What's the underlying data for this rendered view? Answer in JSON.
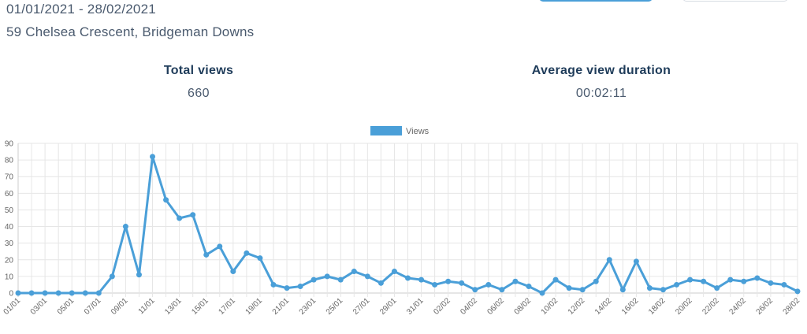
{
  "header": {
    "date_range": "01/01/2021 - 28/02/2021",
    "address": "59 Chelsea Crescent, Bridgeman Downs"
  },
  "stats": {
    "total_views_label": "Total views",
    "total_views_value": "660",
    "avg_duration_label": "Average view duration",
    "avg_duration_value": "00:02:11"
  },
  "colors": {
    "series": "#4a9fd8",
    "grid": "#e6e6e6",
    "axis": "#cccccc"
  },
  "chart_data": {
    "type": "line",
    "legend_position": "top-center",
    "grid": true,
    "ylim": [
      0,
      90
    ],
    "yticks": [
      0,
      10,
      20,
      30,
      40,
      50,
      60,
      70,
      80,
      90
    ],
    "x": [
      "01/01",
      "02/01",
      "03/01",
      "04/01",
      "05/01",
      "06/01",
      "07/01",
      "08/01",
      "09/01",
      "10/01",
      "11/01",
      "12/01",
      "13/01",
      "14/01",
      "15/01",
      "16/01",
      "17/01",
      "18/01",
      "19/01",
      "20/01",
      "21/01",
      "22/01",
      "23/01",
      "24/01",
      "25/01",
      "26/01",
      "27/01",
      "28/01",
      "29/01",
      "30/01",
      "31/01",
      "01/02",
      "02/02",
      "03/02",
      "04/02",
      "05/02",
      "06/02",
      "07/02",
      "08/02",
      "09/02",
      "10/02",
      "11/02",
      "12/02",
      "13/02",
      "14/02",
      "15/02",
      "16/02",
      "17/02",
      "18/02",
      "19/02",
      "20/02",
      "21/02",
      "22/02",
      "23/02",
      "24/02",
      "25/02",
      "26/02",
      "27/02",
      "28/02"
    ],
    "x_tick_labels": [
      "01/01",
      "03/01",
      "05/01",
      "07/01",
      "09/01",
      "11/01",
      "13/01",
      "15/01",
      "17/01",
      "19/01",
      "21/01",
      "23/01",
      "25/01",
      "27/01",
      "29/01",
      "31/01",
      "02/02",
      "04/02",
      "06/02",
      "08/02",
      "10/02",
      "12/02",
      "14/02",
      "16/02",
      "18/02",
      "20/02",
      "22/02",
      "24/02",
      "26/02",
      "28/02"
    ],
    "series": [
      {
        "name": "Views",
        "values": [
          0,
          0,
          0,
          0,
          0,
          0,
          0,
          10,
          40,
          11,
          82,
          56,
          45,
          47,
          23,
          28,
          13,
          24,
          21,
          5,
          3,
          4,
          8,
          10,
          8,
          13,
          10,
          6,
          13,
          9,
          8,
          5,
          7,
          6,
          2,
          5,
          2,
          7,
          4,
          0,
          8,
          3,
          2,
          7,
          20,
          2,
          19,
          3,
          2,
          5,
          8,
          7,
          3,
          8,
          7,
          9,
          6,
          5,
          1
        ]
      }
    ]
  }
}
